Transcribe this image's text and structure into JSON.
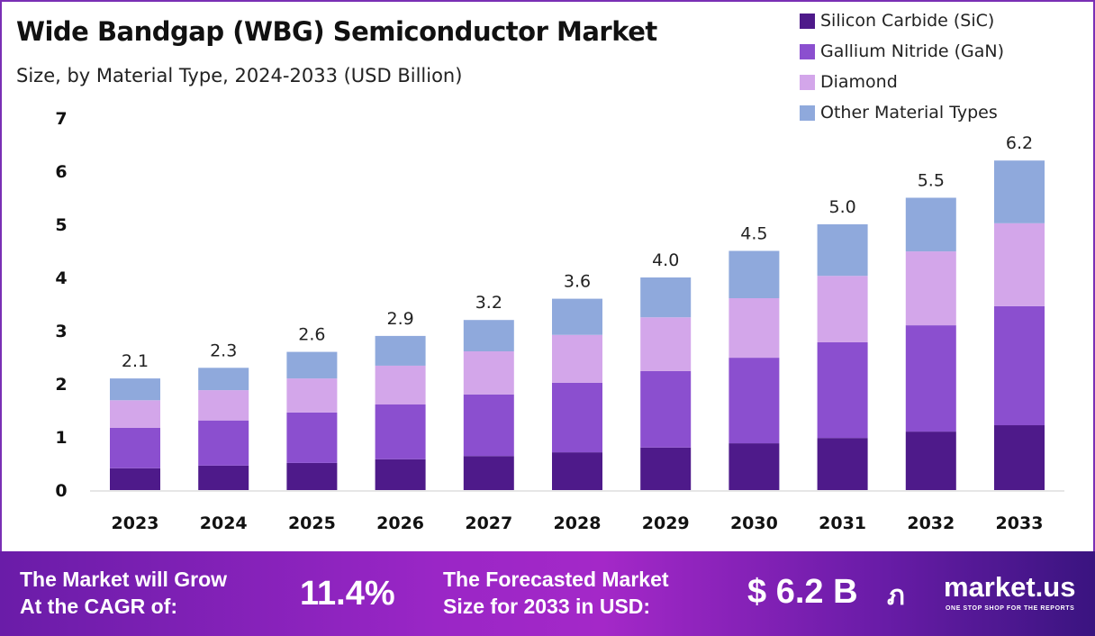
{
  "chart_data": {
    "type": "bar",
    "stacked": true,
    "title": "Wide Bandgap (WBG) Semiconductor Market",
    "subtitle": "Size, by Material Type, 2024-2033 (USD Billion)",
    "categories": [
      "2023",
      "2024",
      "2025",
      "2026",
      "2027",
      "2028",
      "2029",
      "2030",
      "2031",
      "2032",
      "2033"
    ],
    "series": [
      {
        "name": "Silicon Carbide (SiC)",
        "color": "#4e1a8a",
        "values": [
          0.41,
          0.46,
          0.51,
          0.58,
          0.64,
          0.71,
          0.8,
          0.88,
          0.98,
          1.1,
          1.22
        ]
      },
      {
        "name": "Gallium Nitride (GaN)",
        "color": "#8b4fcf",
        "values": [
          0.76,
          0.85,
          0.95,
          1.03,
          1.16,
          1.31,
          1.44,
          1.61,
          1.8,
          2.0,
          2.24
        ]
      },
      {
        "name": "Diamond",
        "color": "#d3a6ea",
        "values": [
          0.52,
          0.57,
          0.64,
          0.73,
          0.81,
          0.9,
          1.01,
          1.12,
          1.25,
          1.39,
          1.56
        ]
      },
      {
        "name": "Other Material Types",
        "color": "#8fa9dc",
        "values": [
          0.41,
          0.42,
          0.5,
          0.56,
          0.59,
          0.68,
          0.75,
          0.89,
          0.97,
          1.01,
          1.18
        ]
      }
    ],
    "totals": [
      "2.1",
      "2.3",
      "2.6",
      "2.9",
      "3.2",
      "3.6",
      "4.0",
      "4.5",
      "5.0",
      "5.5",
      "6.2"
    ],
    "ylim": [
      0,
      7
    ],
    "yticks": [
      "0",
      "1",
      "2",
      "3",
      "4",
      "5",
      "6",
      "7"
    ],
    "grid": false,
    "legend": "top-right"
  },
  "footer": {
    "cagr_label_1": "The Market will Grow",
    "cagr_label_2": "At the CAGR of:",
    "cagr_value": "11.4%",
    "forecast_label_1": "The Forecasted Market",
    "forecast_label_2": "Size for 2033 in USD:",
    "forecast_value": "$ 6.2 B",
    "brand": "market.us",
    "tagline": "ONE STOP SHOP FOR THE REPORTS"
  }
}
